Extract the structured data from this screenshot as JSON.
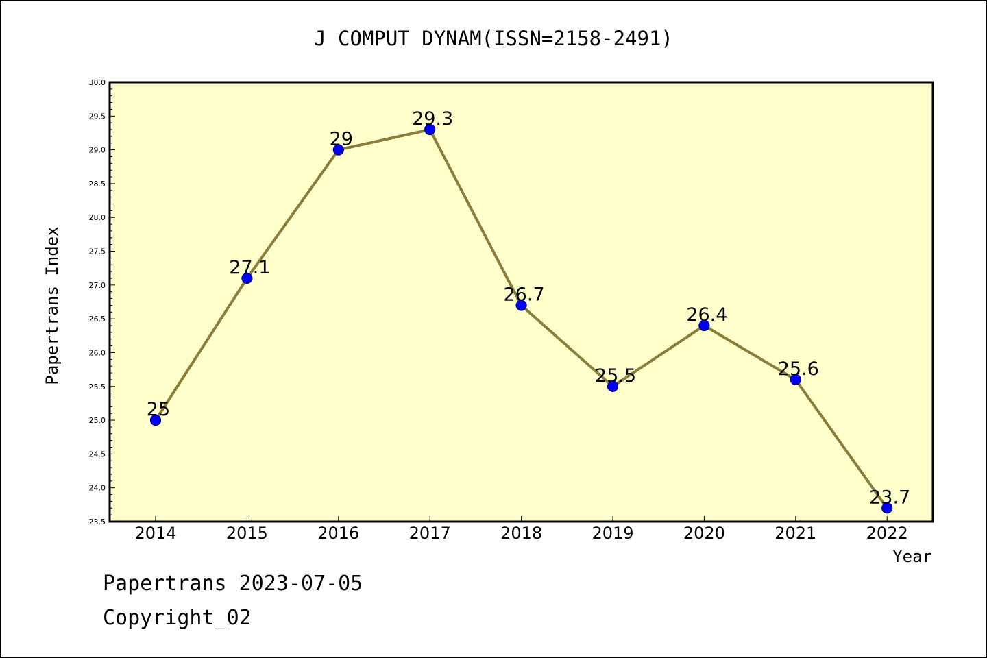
{
  "chart_data": {
    "type": "line",
    "title": "J COMPUT DYNAM(ISSN=2158-2491)",
    "xlabel": "Year",
    "ylabel": "Papertrans Index",
    "categories": [
      "2014",
      "2015",
      "2016",
      "2017",
      "2018",
      "2019",
      "2020",
      "2021",
      "2022"
    ],
    "values": [
      25,
      27.1,
      29,
      29.3,
      26.7,
      25.5,
      26.4,
      25.6,
      23.7
    ],
    "data_labels": [
      "25",
      "27.1",
      "29",
      "29.3",
      "26.7",
      "25.5",
      "26.4",
      "25.6",
      "23.7"
    ],
    "ylim": [
      23.5,
      30.0
    ],
    "yticks": [
      "23.5",
      "24.0",
      "24.5",
      "25.0",
      "25.5",
      "26.0",
      "26.5",
      "27.0",
      "27.5",
      "28.0",
      "28.5",
      "29.0",
      "29.5",
      "30.0"
    ],
    "grid": false,
    "colors": {
      "plot_background": "#ffffcc",
      "line": "#8b7d3a",
      "marker_fill": "#0000ff",
      "marker_edge": "#000080",
      "axis": "#000000"
    }
  },
  "footer": {
    "line1": "Papertrans 2023-07-05",
    "line2": "Copyright_02"
  }
}
